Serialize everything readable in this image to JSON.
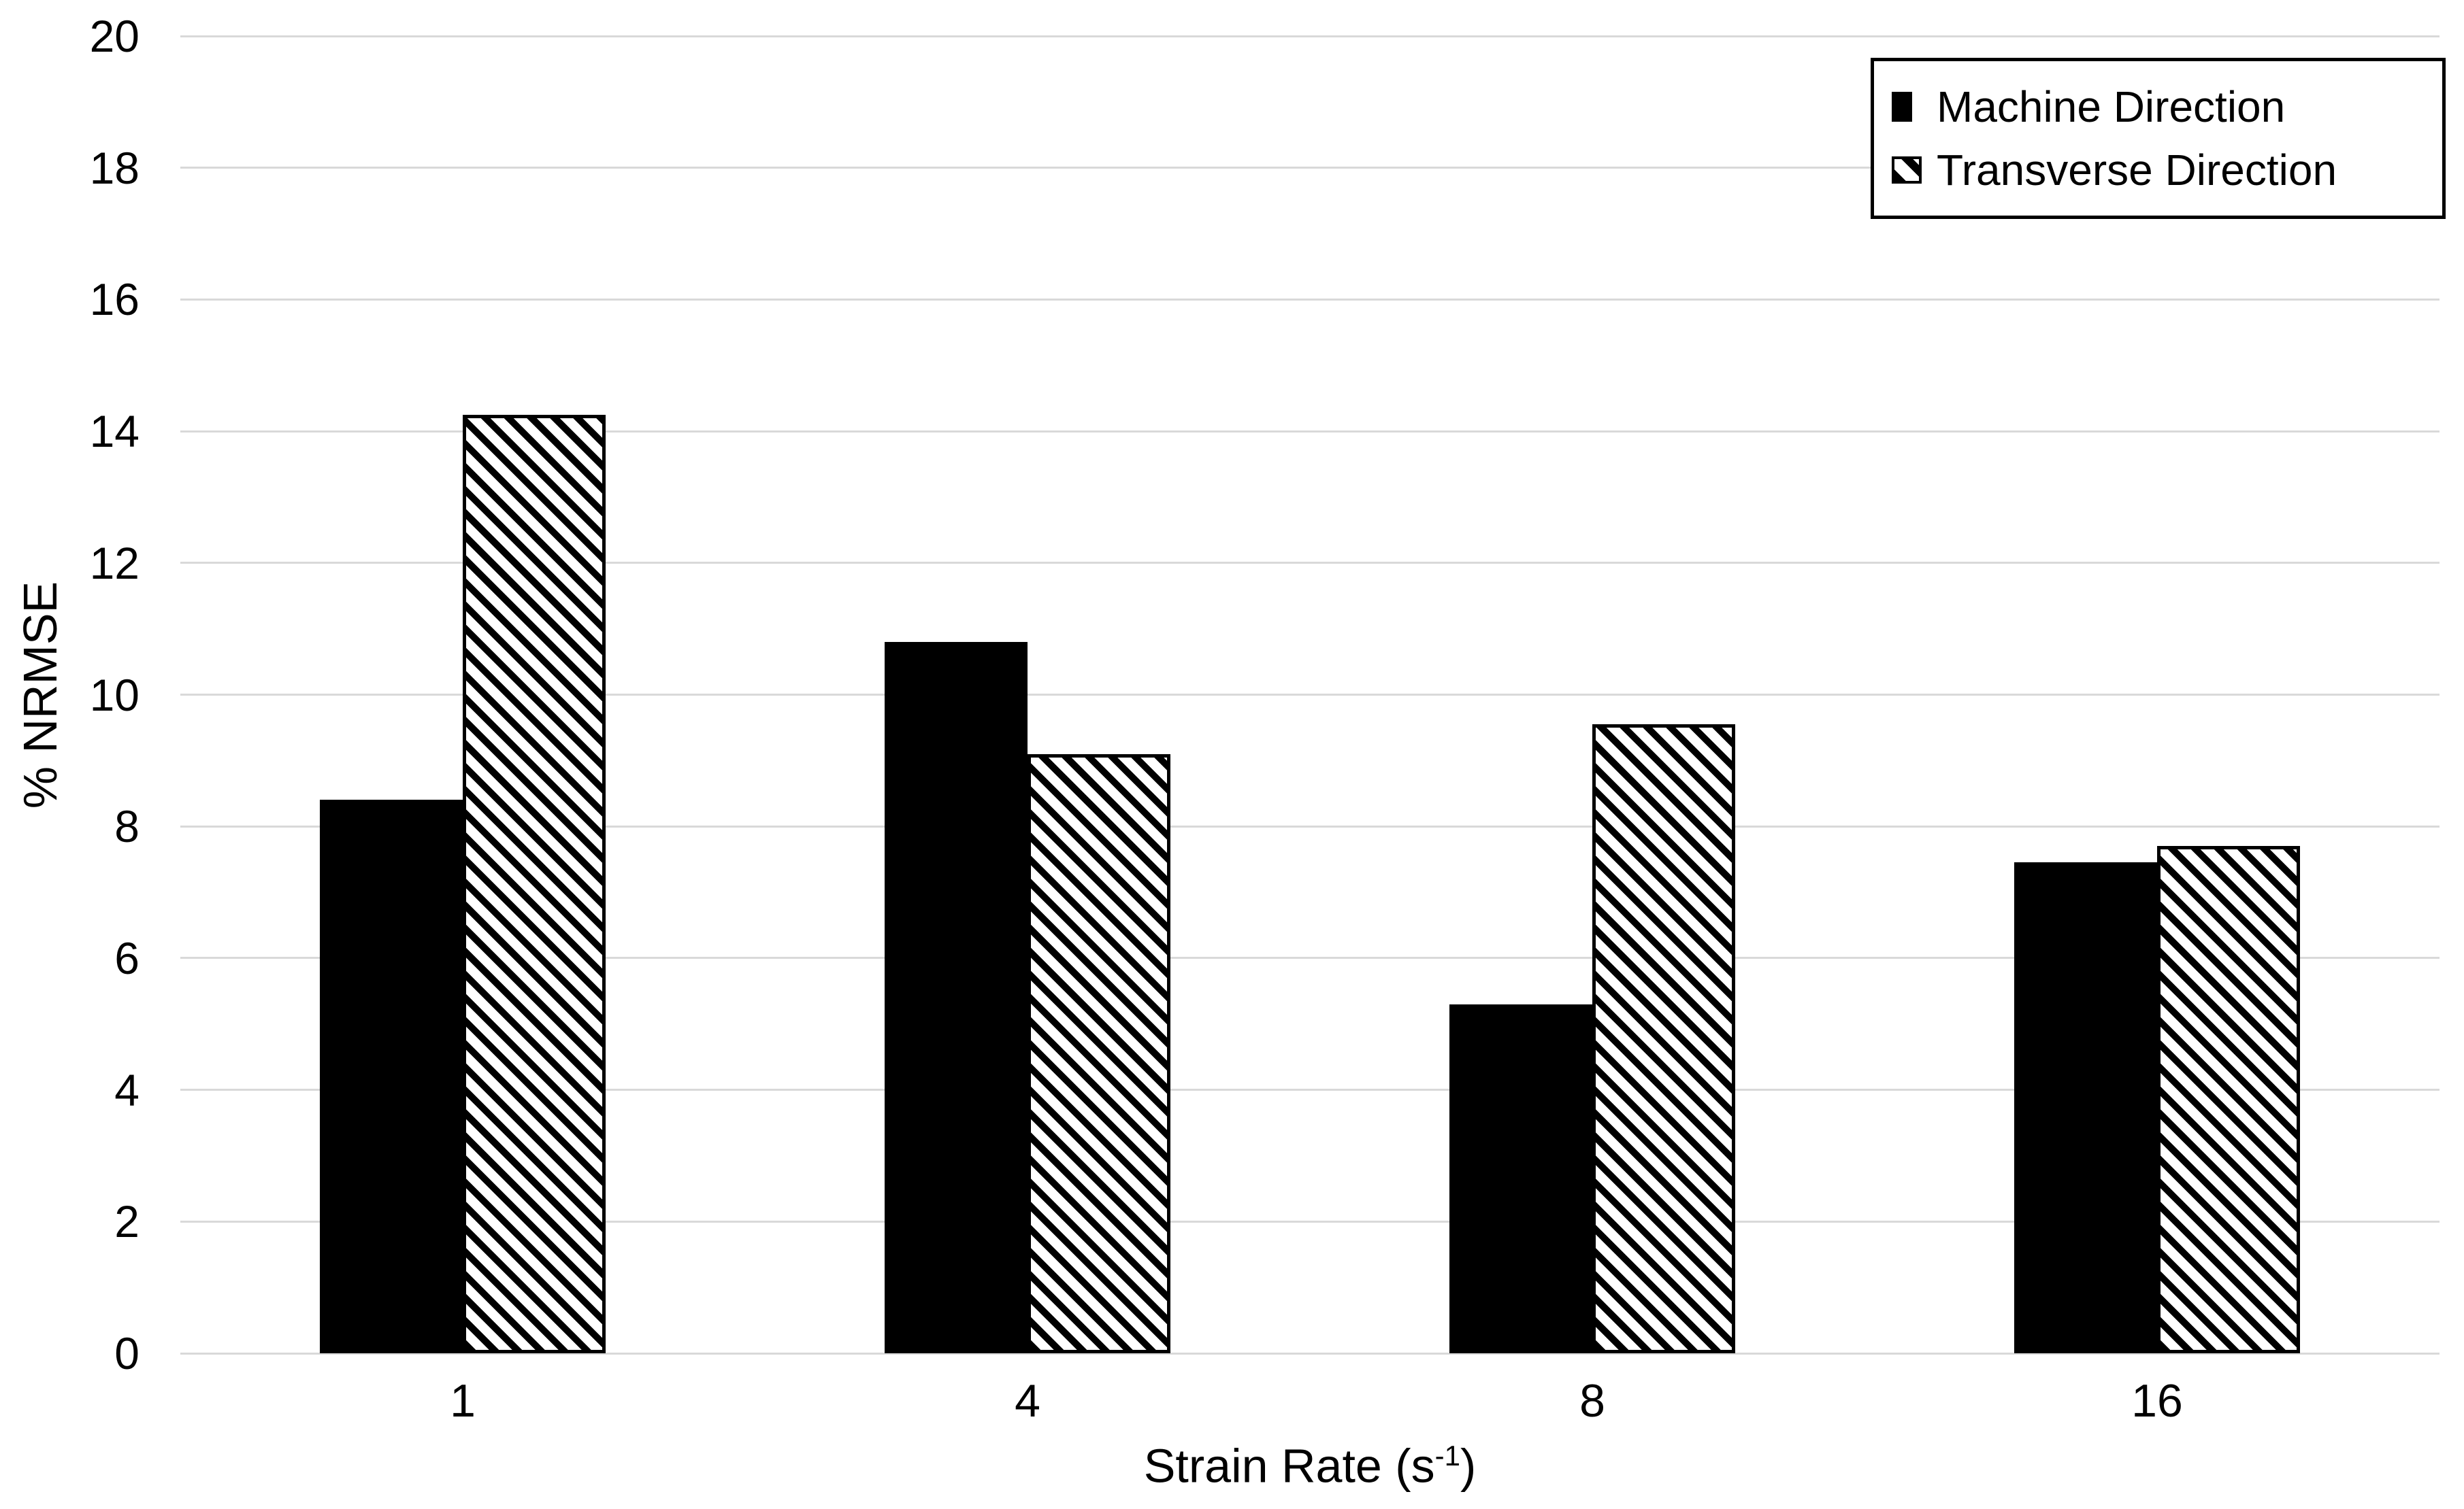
{
  "chart_data": {
    "type": "bar",
    "title": "",
    "categories": [
      "1",
      "4",
      "8",
      "16"
    ],
    "series": [
      {
        "name": "Machine Direction",
        "style": "solid",
        "values": [
          8.4,
          10.8,
          5.3,
          7.45
        ]
      },
      {
        "name": "Transverse Direction",
        "style": "hatch",
        "values": [
          14.25,
          9.1,
          9.55,
          7.7
        ]
      }
    ],
    "xlabel": "Strain Rate (s⁻¹)",
    "xlabel_parts": {
      "prefix": "Strain Rate (s",
      "sup": "-1",
      "suffix": ")"
    },
    "ylabel": "% NRMSE",
    "ylim": [
      0,
      20
    ],
    "yticks": [
      0,
      2,
      4,
      6,
      8,
      10,
      12,
      14,
      16,
      18,
      20
    ],
    "grid": "horizontal",
    "legend": {
      "position": "top-right",
      "entries": [
        "Machine Direction",
        "Transverse Direction"
      ]
    },
    "colors": {
      "bar_fill": "#000000",
      "hatch_line": "#000000",
      "hatch_bg": "#ffffff",
      "gridline": "#d9d9d9",
      "text": "#000000",
      "background": "#ffffff",
      "legend_border": "#000000"
    }
  }
}
